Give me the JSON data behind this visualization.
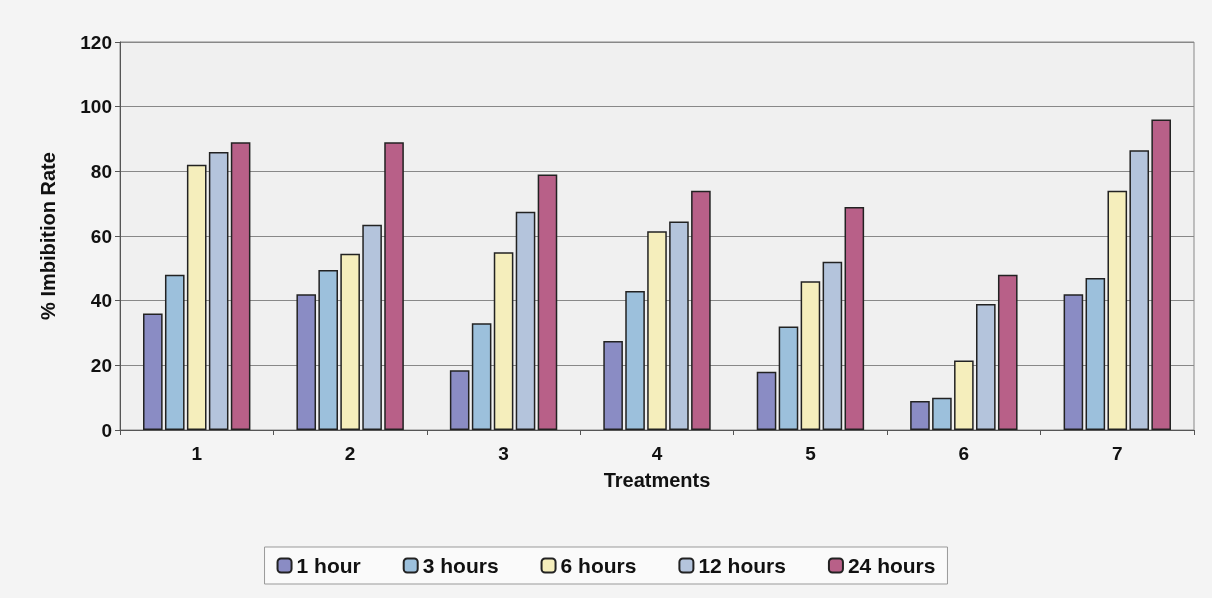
{
  "chart_data": {
    "type": "bar",
    "xlabel": "Treatments",
    "ylabel": "% Imbibition Rate",
    "categories": [
      "1",
      "2",
      "3",
      "4",
      "5",
      "6",
      "7"
    ],
    "series": [
      {
        "name": "1 hour",
        "color": "#8a8cc4",
        "values": [
          36,
          42,
          18.5,
          27.5,
          18,
          9,
          42
        ]
      },
      {
        "name": "3 hours",
        "color": "#9cc0dc",
        "values": [
          48,
          49.5,
          33,
          43,
          32,
          10,
          47
        ]
      },
      {
        "name": "6 hours",
        "color": "#f5eebc",
        "values": [
          82,
          54.5,
          55,
          61.5,
          46,
          21.5,
          74
        ]
      },
      {
        "name": "12 hours",
        "color": "#b4c4dc",
        "values": [
          86,
          63.5,
          67.5,
          64.5,
          52,
          39,
          86.5
        ]
      },
      {
        "name": "24 hours",
        "color": "#b86088",
        "values": [
          89,
          89,
          79,
          74,
          69,
          48,
          96
        ]
      }
    ],
    "ylim": [
      0,
      120
    ],
    "yticks": [
      0,
      20,
      40,
      60,
      80,
      100,
      120
    ],
    "grid": "y",
    "legend": "bottom"
  }
}
